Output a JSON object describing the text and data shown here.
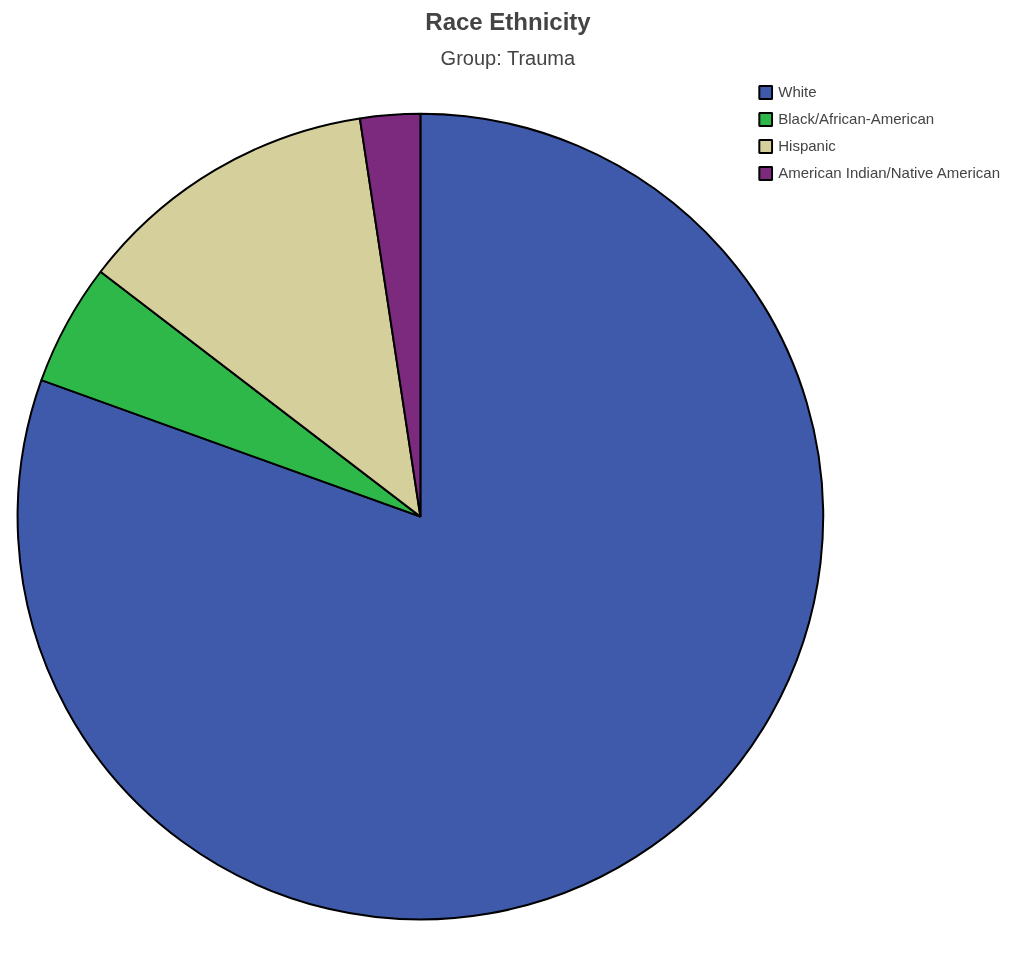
{
  "chart_data": {
    "type": "pie",
    "title": "Race Ethnicity",
    "subtitle": "Group: Trauma",
    "categories": [
      "White",
      "Black/African-American",
      "Hispanic",
      "American Indian/Native American"
    ],
    "values": [
      80.5,
      4.9,
      12.2,
      2.4
    ],
    "colors": [
      "#3f5aab",
      "#2fb84a",
      "#d4cf9b",
      "#7b2a7d"
    ],
    "legend": "right"
  }
}
